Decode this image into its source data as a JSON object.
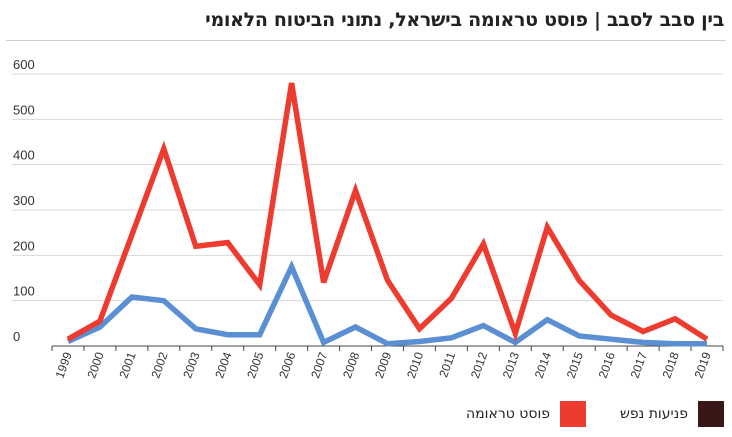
{
  "chart_data": {
    "type": "line",
    "title": "בין סבב לסבב | פוסט טראומה בישראל, נתוני הביטוח הלאומי",
    "x": [
      "1999",
      "2000",
      "2001",
      "2002",
      "2003",
      "2004",
      "2005",
      "2006",
      "2007",
      "2008",
      "2009",
      "2010",
      "2011",
      "2012",
      "2013",
      "2014",
      "2015",
      "2016",
      "2017",
      "2018",
      "2019"
    ],
    "yticks": [
      0,
      100,
      200,
      300,
      400,
      500,
      600
    ],
    "ylim": [
      0,
      600
    ],
    "series": [
      {
        "name": "פוסט טראומה",
        "color": "#ee3b2f",
        "values": [
          15,
          55,
          245,
          435,
          220,
          228,
          135,
          580,
          140,
          343,
          145,
          38,
          105,
          225,
          28,
          262,
          145,
          68,
          32,
          60,
          15
        ]
      },
      {
        "name": "פניעות נפש",
        "color": "#5b8fd3",
        "values": [
          10,
          42,
          108,
          100,
          38,
          25,
          25,
          175,
          8,
          42,
          5,
          10,
          18,
          45,
          8,
          58,
          22,
          15,
          8,
          5,
          5
        ]
      }
    ],
    "legend": [
      {
        "label": "פניעות נפש",
        "color": "#3a1617"
      },
      {
        "label": "פוסט טראומה",
        "color": "#ee3b2f"
      }
    ],
    "grid": true,
    "legend_position": "bottom"
  }
}
